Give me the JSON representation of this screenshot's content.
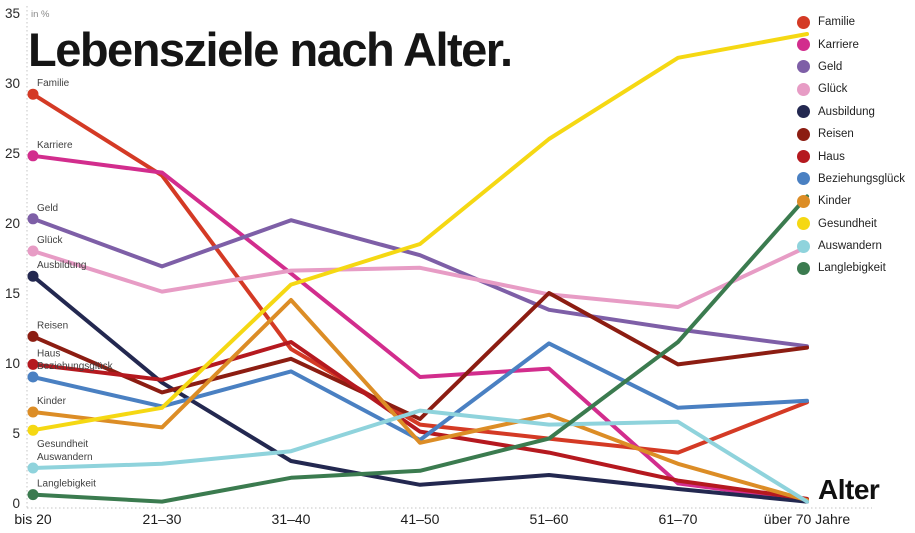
{
  "title": "Lebensziele nach Alter.",
  "chart_data": {
    "type": "line",
    "title": "Lebensziele nach Alter.",
    "unit_label": "in %",
    "x_axis_label": "Alter",
    "categories": [
      "bis 20",
      "21–30",
      "31–40",
      "41–50",
      "51–60",
      "61–70",
      "über 70 Jahre"
    ],
    "ylim": [
      0,
      35
    ],
    "yticks": [
      0,
      5,
      10,
      15,
      20,
      25,
      30,
      35
    ],
    "grid": false,
    "legend_position": "top-right",
    "series": [
      {
        "name": "Familie",
        "color": "#d43a25",
        "values": [
          29.2,
          23.4,
          11.0,
          5.6,
          4.6,
          3.6,
          7.2
        ]
      },
      {
        "name": "Karriere",
        "color": "#d22d8d",
        "values": [
          24.8,
          23.6,
          16.4,
          9.0,
          9.6,
          1.4,
          0.2
        ]
      },
      {
        "name": "Geld",
        "color": "#7e5fa7",
        "values": [
          20.3,
          16.9,
          20.2,
          17.7,
          13.8,
          12.4,
          11.2
        ]
      },
      {
        "name": "Glück",
        "color": "#e79cc5",
        "values": [
          18.0,
          15.1,
          16.6,
          16.8,
          14.9,
          14.0,
          18.3
        ]
      },
      {
        "name": "Ausbildung",
        "color": "#232850",
        "values": [
          16.2,
          8.6,
          3.0,
          1.3,
          2.0,
          1.0,
          0.1
        ]
      },
      {
        "name": "Reisen",
        "color": "#8c1d12",
        "values": [
          11.9,
          7.9,
          10.3,
          6.0,
          15.0,
          9.9,
          11.1
        ]
      },
      {
        "name": "Haus",
        "color": "#b5191f",
        "values": [
          9.9,
          8.8,
          11.5,
          5.1,
          3.6,
          1.6,
          0.3
        ]
      },
      {
        "name": "Beziehungsglück",
        "color": "#4a80c2",
        "values": [
          9.0,
          6.9,
          9.4,
          4.5,
          11.4,
          6.8,
          7.3
        ]
      },
      {
        "name": "Kinder",
        "color": "#dc8d26",
        "values": [
          6.5,
          5.4,
          14.5,
          4.3,
          6.3,
          2.8,
          0.2
        ]
      },
      {
        "name": "Gesundheit",
        "color": "#f5d813",
        "values": [
          5.2,
          6.8,
          15.6,
          18.5,
          26.0,
          31.8,
          33.5
        ],
        "label_below": true
      },
      {
        "name": "Auswandern",
        "color": "#8fd3dc",
        "values": [
          2.5,
          2.8,
          3.7,
          6.6,
          5.6,
          5.8,
          0.1
        ]
      },
      {
        "name": "Langlebigkeit",
        "color": "#3b7b4f",
        "values": [
          0.6,
          0.1,
          1.8,
          2.3,
          4.6,
          11.5,
          21.9
        ]
      }
    ]
  }
}
